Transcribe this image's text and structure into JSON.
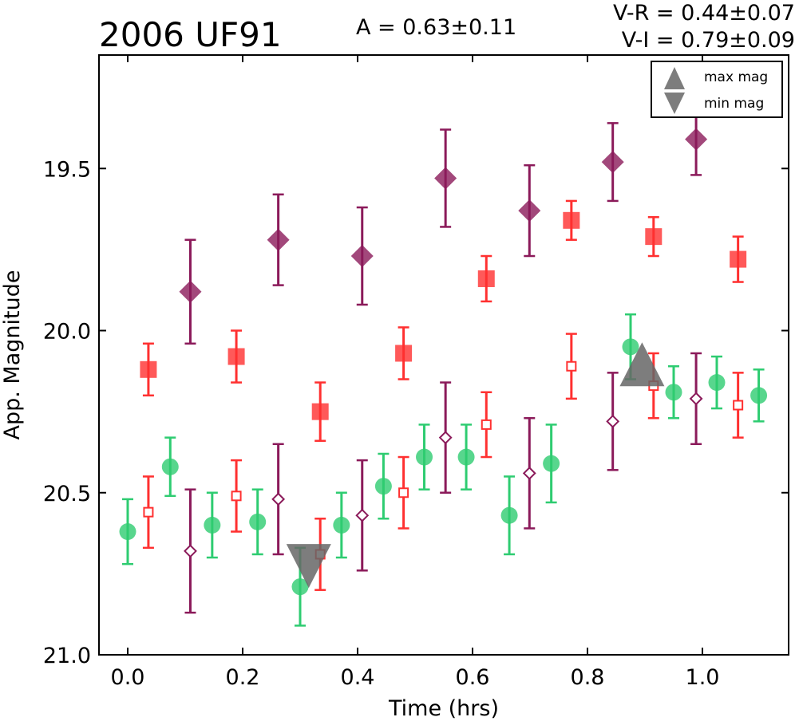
{
  "chart_data": {
    "type": "scatter",
    "title": "2006 UF91",
    "annotations": {
      "amplitude": "A  = 0.63±0.11",
      "v_r": "V-R = 0.44±0.07",
      "v_i": "V-I  = 0.79±0.09"
    },
    "xlabel": "Time (hrs)",
    "ylabel": "App. Magnitude",
    "xlim": [
      -0.05,
      1.15
    ],
    "ylim": [
      21.0,
      19.15
    ],
    "y_inverted": true,
    "grid": false,
    "xticks": [
      0.0,
      0.2,
      0.4,
      0.6,
      0.8,
      1.0
    ],
    "xtick_labels": [
      "0.0",
      "0.2",
      "0.4",
      "0.6",
      "0.8",
      "1.0"
    ],
    "yticks": [
      19.5,
      20.0,
      20.5,
      21.0
    ],
    "ytick_labels": [
      "19.5",
      "20.0",
      "20.5",
      "21.0"
    ],
    "legend": {
      "placement": "top-right",
      "entries": [
        {
          "label": "max mag",
          "marker": "triangle-up",
          "color": "#666666"
        },
        {
          "label": "min mag",
          "marker": "triangle-down",
          "color": "#666666"
        }
      ]
    },
    "series": [
      {
        "marker": "circle",
        "filled": true,
        "color": "#2ecc71",
        "points": [
          {
            "x": 0.0,
            "y": 20.62,
            "err": 0.1
          },
          {
            "x": 0.074,
            "y": 20.42,
            "err": 0.09
          },
          {
            "x": 0.147,
            "y": 20.6,
            "err": 0.1
          },
          {
            "x": 0.226,
            "y": 20.59,
            "err": 0.1
          },
          {
            "x": 0.3,
            "y": 20.79,
            "err": 0.12
          },
          {
            "x": 0.372,
            "y": 20.6,
            "err": 0.1
          },
          {
            "x": 0.445,
            "y": 20.48,
            "err": 0.1
          },
          {
            "x": 0.516,
            "y": 20.39,
            "err": 0.1
          },
          {
            "x": 0.589,
            "y": 20.39,
            "err": 0.1
          },
          {
            "x": 0.664,
            "y": 20.57,
            "err": 0.12
          },
          {
            "x": 0.737,
            "y": 20.41,
            "err": 0.12
          },
          {
            "x": 0.875,
            "y": 20.05,
            "err": 0.1
          },
          {
            "x": 0.95,
            "y": 20.19,
            "err": 0.08
          },
          {
            "x": 1.025,
            "y": 20.16,
            "err": 0.08
          },
          {
            "x": 1.098,
            "y": 20.2,
            "err": 0.08
          }
        ]
      },
      {
        "marker": "square",
        "filled": true,
        "color": "#ff3030",
        "points": [
          {
            "x": 0.036,
            "y": 20.12,
            "err": 0.08
          },
          {
            "x": 0.189,
            "y": 20.08,
            "err": 0.08
          },
          {
            "x": 0.335,
            "y": 20.25,
            "err": 0.09
          },
          {
            "x": 0.48,
            "y": 20.07,
            "err": 0.08
          },
          {
            "x": 0.624,
            "y": 19.84,
            "err": 0.07
          },
          {
            "x": 0.772,
            "y": 19.66,
            "err": 0.06
          },
          {
            "x": 0.915,
            "y": 19.71,
            "err": 0.06
          },
          {
            "x": 1.062,
            "y": 19.78,
            "err": 0.07
          }
        ]
      },
      {
        "marker": "diamond",
        "filled": true,
        "color": "#8b1a5a",
        "points": [
          {
            "x": 0.109,
            "y": 19.88,
            "err": 0.16
          },
          {
            "x": 0.262,
            "y": 19.72,
            "err": 0.14
          },
          {
            "x": 0.408,
            "y": 19.77,
            "err": 0.15
          },
          {
            "x": 0.553,
            "y": 19.53,
            "err": 0.15
          },
          {
            "x": 0.699,
            "y": 19.63,
            "err": 0.14
          },
          {
            "x": 0.844,
            "y": 19.48,
            "err": 0.12
          },
          {
            "x": 0.989,
            "y": 19.41,
            "err": 0.11
          }
        ]
      },
      {
        "marker": "square",
        "filled": false,
        "color": "#ff3030",
        "points": [
          {
            "x": 0.036,
            "y": 20.56,
            "err": 0.11
          },
          {
            "x": 0.189,
            "y": 20.51,
            "err": 0.11
          },
          {
            "x": 0.335,
            "y": 20.69,
            "err": 0.11
          },
          {
            "x": 0.48,
            "y": 20.5,
            "err": 0.11
          },
          {
            "x": 0.624,
            "y": 20.29,
            "err": 0.1
          },
          {
            "x": 0.772,
            "y": 20.11,
            "err": 0.1
          },
          {
            "x": 0.915,
            "y": 20.17,
            "err": 0.1
          },
          {
            "x": 1.062,
            "y": 20.23,
            "err": 0.1
          }
        ]
      },
      {
        "marker": "diamond",
        "filled": false,
        "color": "#8b1a5a",
        "points": [
          {
            "x": 0.109,
            "y": 20.68,
            "err": 0.19
          },
          {
            "x": 0.262,
            "y": 20.52,
            "err": 0.17
          },
          {
            "x": 0.408,
            "y": 20.57,
            "err": 0.17
          },
          {
            "x": 0.553,
            "y": 20.33,
            "err": 0.17
          },
          {
            "x": 0.699,
            "y": 20.44,
            "err": 0.17
          },
          {
            "x": 0.844,
            "y": 20.28,
            "err": 0.15
          },
          {
            "x": 0.989,
            "y": 20.21,
            "err": 0.14
          }
        ]
      }
    ],
    "extrema": {
      "max_mag": {
        "x": 0.895,
        "y": 20.11,
        "color": "#666666"
      },
      "min_mag": {
        "x": 0.315,
        "y": 20.72,
        "color": "#666666"
      }
    }
  }
}
